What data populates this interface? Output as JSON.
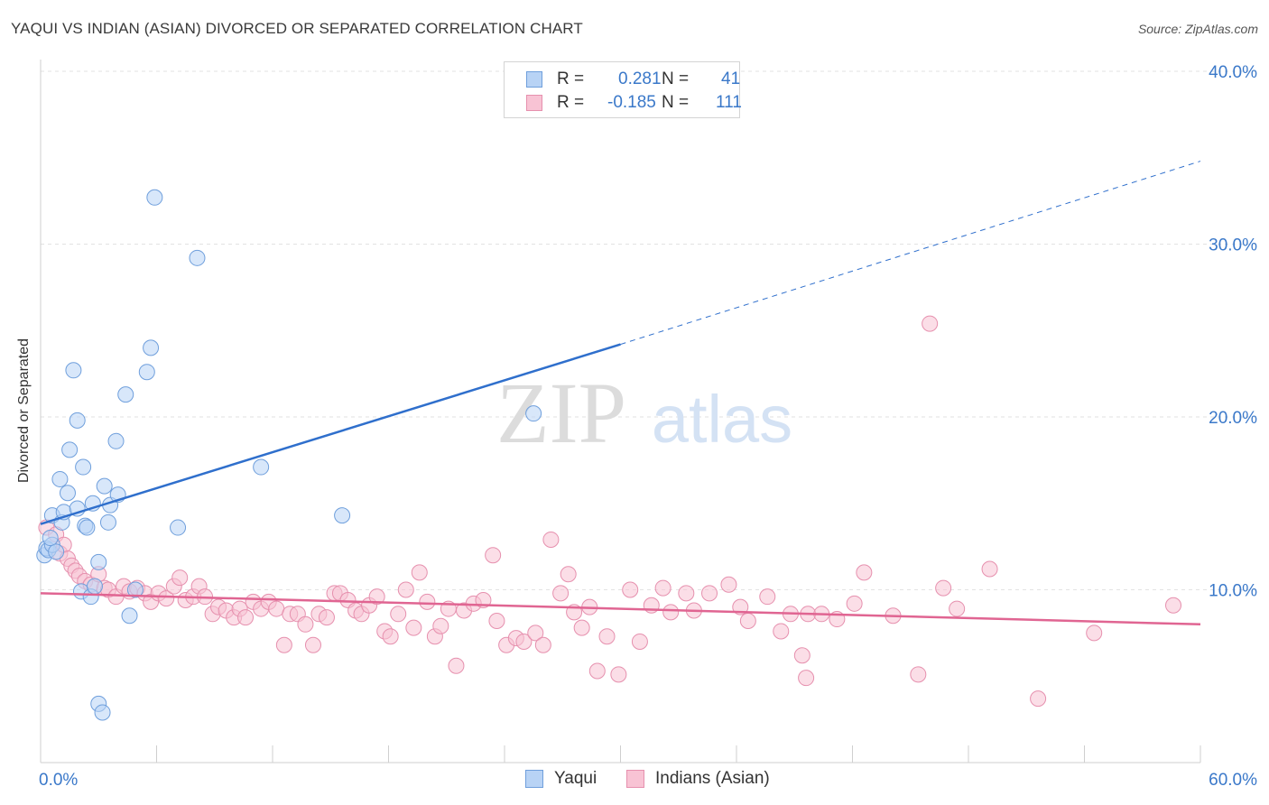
{
  "header": {
    "title": "YAQUI VS INDIAN (ASIAN) DIVORCED OR SEPARATED CORRELATION CHART",
    "source": "Source: ZipAtlas.com"
  },
  "watermark": {
    "zip": "ZIP",
    "atlas": "atlas"
  },
  "legend": {
    "r_label": "R =",
    "n_label": "N =",
    "rows": [
      {
        "r": "0.281",
        "n": "41"
      },
      {
        "r": "-0.185",
        "n": "111"
      }
    ]
  },
  "colors": {
    "yaqui_fill": "#b8d3f5",
    "yaqui_stroke": "#6f9fdc",
    "yaqui_line": "#2f6fcc",
    "indian_fill": "#f8c3d4",
    "indian_stroke": "#e690ae",
    "indian_line": "#e06592",
    "tick_label": "#3a78c9",
    "grid": "#e2e2e2"
  },
  "chart_data": {
    "type": "scatter",
    "title": "YAQUI VS INDIAN (ASIAN) DIVORCED OR SEPARATED CORRELATION CHART",
    "xlabel": "",
    "ylabel": "Divorced or Separated",
    "xlim": [
      0,
      60
    ],
    "ylim": [
      0,
      40
    ],
    "x_tick_labels": [
      "0.0%",
      "60.0%"
    ],
    "y_ticks": [
      10,
      20,
      30,
      40
    ],
    "y_tick_labels": [
      "10.0%",
      "20.0%",
      "30.0%",
      "40.0%"
    ],
    "grid": "horizontal dashed",
    "legend_position": "top-center",
    "series": [
      {
        "name": "Yaqui",
        "r": 0.281,
        "n": 41,
        "trend": {
          "x": [
            0,
            30
          ],
          "y": [
            13.8,
            24.2
          ],
          "dashed_extension_to_x": 60,
          "dashed_end_y": 34.8
        },
        "points": [
          [
            0.2,
            12.0
          ],
          [
            0.3,
            12.4
          ],
          [
            0.4,
            12.3
          ],
          [
            0.6,
            12.6
          ],
          [
            0.6,
            14.3
          ],
          [
            0.8,
            12.2
          ],
          [
            1.0,
            16.4
          ],
          [
            1.1,
            13.9
          ],
          [
            1.2,
            14.5
          ],
          [
            1.4,
            15.6
          ],
          [
            1.5,
            18.1
          ],
          [
            1.7,
            22.7
          ],
          [
            1.9,
            19.8
          ],
          [
            1.9,
            14.7
          ],
          [
            2.1,
            9.9
          ],
          [
            2.2,
            17.1
          ],
          [
            2.3,
            13.7
          ],
          [
            2.4,
            13.6
          ],
          [
            2.6,
            9.6
          ],
          [
            2.7,
            15.0
          ],
          [
            2.8,
            10.2
          ],
          [
            3.0,
            3.4
          ],
          [
            3.0,
            11.6
          ],
          [
            3.2,
            2.9
          ],
          [
            3.3,
            16.0
          ],
          [
            3.5,
            13.9
          ],
          [
            3.6,
            14.9
          ],
          [
            3.9,
            18.6
          ],
          [
            4.0,
            15.5
          ],
          [
            4.4,
            21.3
          ],
          [
            4.6,
            8.5
          ],
          [
            4.9,
            10.0
          ],
          [
            5.5,
            22.6
          ],
          [
            5.7,
            24.0
          ],
          [
            5.9,
            32.7
          ],
          [
            7.1,
            13.6
          ],
          [
            8.1,
            29.2
          ],
          [
            11.4,
            17.1
          ],
          [
            15.6,
            14.3
          ],
          [
            25.5,
            20.2
          ],
          [
            0.5,
            13.0
          ]
        ]
      },
      {
        "name": "Indians (Asian)",
        "r": -0.185,
        "n": 111,
        "trend": {
          "x": [
            0,
            60
          ],
          "y": [
            9.8,
            8.0
          ]
        },
        "points": [
          [
            0.3,
            13.6
          ],
          [
            0.8,
            13.2
          ],
          [
            1.0,
            12.1
          ],
          [
            1.2,
            12.6
          ],
          [
            1.4,
            11.8
          ],
          [
            1.6,
            11.4
          ],
          [
            1.8,
            11.1
          ],
          [
            2.0,
            10.8
          ],
          [
            2.3,
            10.5
          ],
          [
            2.6,
            10.3
          ],
          [
            3.0,
            10.9
          ],
          [
            3.3,
            10.1
          ],
          [
            3.5,
            10.0
          ],
          [
            3.9,
            9.6
          ],
          [
            4.3,
            10.2
          ],
          [
            4.6,
            9.9
          ],
          [
            5.0,
            10.1
          ],
          [
            5.4,
            9.8
          ],
          [
            5.7,
            9.3
          ],
          [
            6.1,
            9.8
          ],
          [
            6.5,
            9.5
          ],
          [
            6.9,
            10.2
          ],
          [
            7.2,
            10.7
          ],
          [
            7.5,
            9.4
          ],
          [
            7.9,
            9.6
          ],
          [
            8.2,
            10.2
          ],
          [
            8.5,
            9.6
          ],
          [
            8.9,
            8.6
          ],
          [
            9.2,
            9.0
          ],
          [
            9.6,
            8.8
          ],
          [
            10.0,
            8.4
          ],
          [
            10.3,
            8.9
          ],
          [
            10.6,
            8.4
          ],
          [
            11.0,
            9.3
          ],
          [
            11.4,
            8.9
          ],
          [
            11.8,
            9.3
          ],
          [
            12.2,
            8.9
          ],
          [
            12.6,
            6.8
          ],
          [
            12.9,
            8.6
          ],
          [
            13.3,
            8.6
          ],
          [
            13.7,
            8.0
          ],
          [
            14.1,
            6.8
          ],
          [
            14.4,
            8.6
          ],
          [
            14.8,
            8.4
          ],
          [
            15.2,
            9.8
          ],
          [
            15.5,
            9.8
          ],
          [
            15.9,
            9.4
          ],
          [
            16.3,
            8.8
          ],
          [
            16.6,
            8.6
          ],
          [
            17.0,
            9.1
          ],
          [
            17.4,
            9.6
          ],
          [
            17.8,
            7.6
          ],
          [
            18.1,
            7.3
          ],
          [
            18.5,
            8.6
          ],
          [
            18.9,
            10.0
          ],
          [
            19.3,
            7.8
          ],
          [
            19.6,
            11.0
          ],
          [
            20.0,
            9.3
          ],
          [
            20.4,
            7.3
          ],
          [
            20.7,
            7.9
          ],
          [
            21.1,
            8.9
          ],
          [
            21.5,
            5.6
          ],
          [
            21.9,
            8.8
          ],
          [
            22.4,
            9.2
          ],
          [
            22.9,
            9.4
          ],
          [
            23.4,
            12.0
          ],
          [
            23.6,
            8.2
          ],
          [
            24.1,
            6.8
          ],
          [
            24.6,
            7.2
          ],
          [
            25.0,
            7.0
          ],
          [
            25.6,
            7.5
          ],
          [
            26.0,
            6.8
          ],
          [
            26.4,
            12.9
          ],
          [
            26.9,
            9.8
          ],
          [
            27.3,
            10.9
          ],
          [
            27.6,
            8.7
          ],
          [
            28.0,
            7.8
          ],
          [
            28.4,
            9.0
          ],
          [
            28.8,
            5.3
          ],
          [
            29.3,
            7.3
          ],
          [
            29.9,
            5.1
          ],
          [
            30.5,
            10.0
          ],
          [
            31.0,
            7.0
          ],
          [
            31.6,
            9.1
          ],
          [
            32.2,
            10.1
          ],
          [
            32.6,
            8.7
          ],
          [
            33.4,
            9.8
          ],
          [
            33.8,
            8.8
          ],
          [
            34.6,
            9.8
          ],
          [
            35.6,
            10.3
          ],
          [
            36.2,
            9.0
          ],
          [
            36.6,
            8.2
          ],
          [
            37.6,
            9.6
          ],
          [
            38.3,
            7.6
          ],
          [
            38.8,
            8.6
          ],
          [
            39.4,
            6.2
          ],
          [
            39.7,
            8.6
          ],
          [
            40.4,
            8.6
          ],
          [
            41.2,
            8.3
          ],
          [
            42.1,
            9.2
          ],
          [
            42.6,
            11.0
          ],
          [
            44.1,
            8.5
          ],
          [
            46.0,
            25.4
          ],
          [
            46.7,
            10.1
          ],
          [
            47.4,
            8.9
          ],
          [
            49.1,
            11.2
          ],
          [
            51.6,
            3.7
          ],
          [
            54.5,
            7.5
          ],
          [
            58.6,
            9.1
          ],
          [
            39.6,
            4.9
          ],
          [
            45.4,
            5.1
          ]
        ]
      }
    ]
  },
  "bottom_legend": [
    "Yaqui",
    "Indians (Asian)"
  ]
}
